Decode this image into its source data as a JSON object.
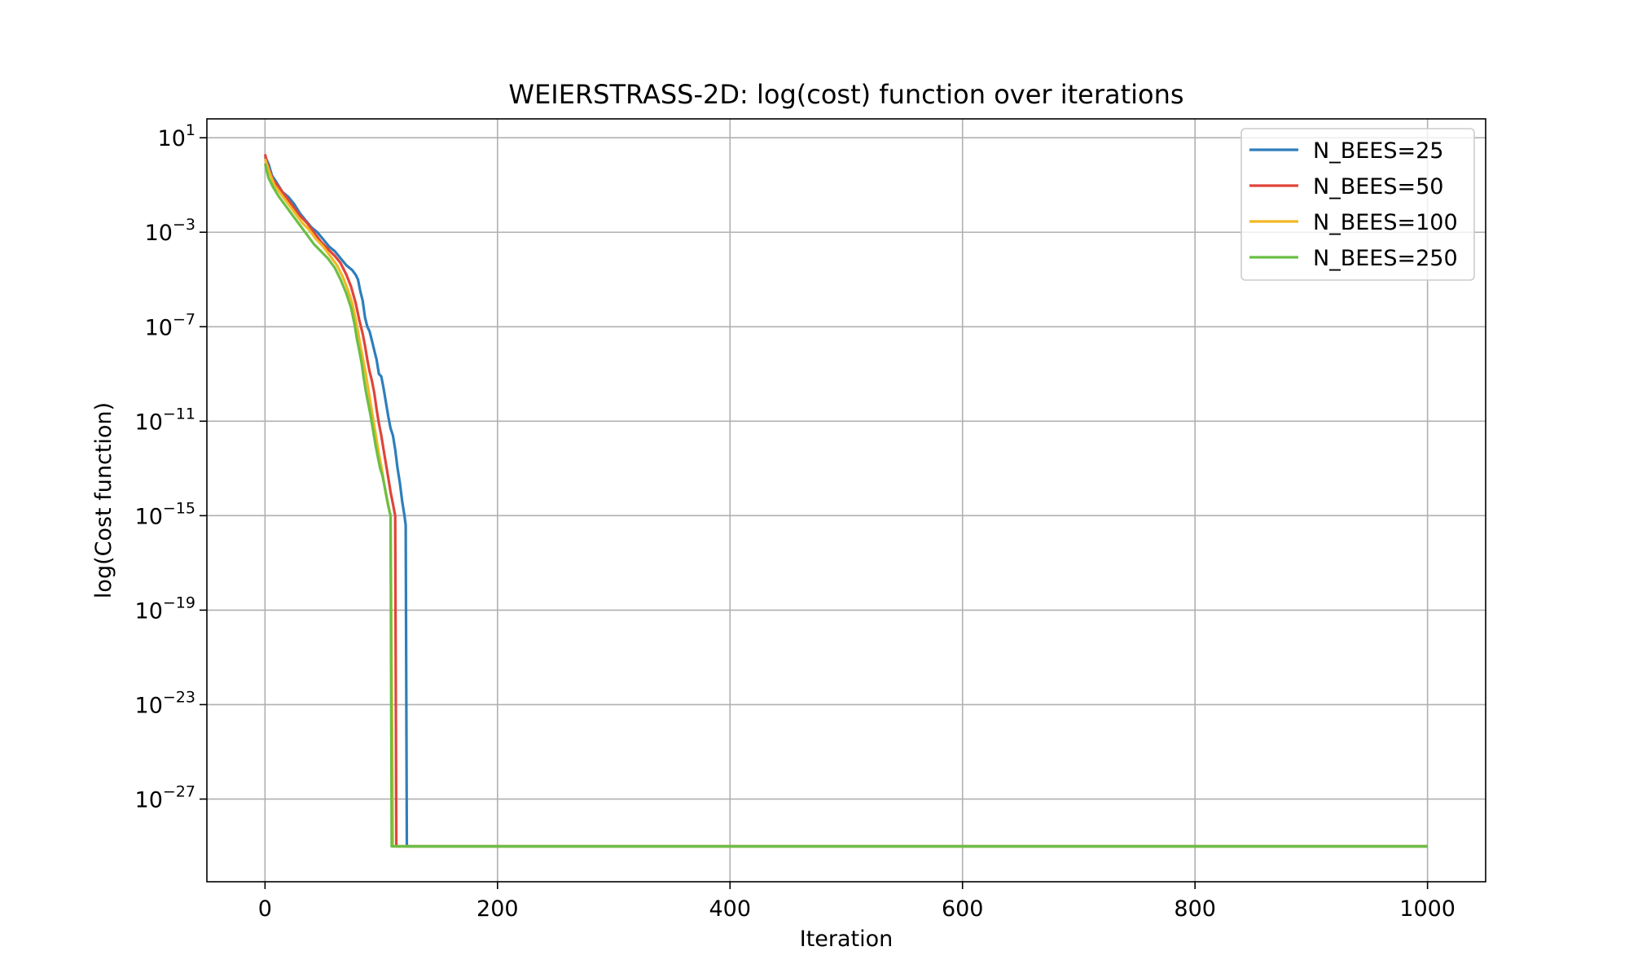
{
  "chart_data": {
    "type": "line",
    "title": "WEIERSTRASS-2D: log(cost) function over iterations",
    "xlabel": "Iteration",
    "ylabel": "log(Cost function)",
    "xlim": [
      -50,
      1050
    ],
    "ylim_log10": [
      -30.5,
      1.8
    ],
    "y_scale": "log",
    "grid": true,
    "legend_position": "top-right",
    "x_ticks": [
      0,
      200,
      400,
      600,
      800,
      1000
    ],
    "y_ticks": [
      {
        "base": "10",
        "exp": "1",
        "log10": 1
      },
      {
        "base": "10",
        "exp": "−3",
        "log10": -3
      },
      {
        "base": "10",
        "exp": "−7",
        "log10": -7
      },
      {
        "base": "10",
        "exp": "−11",
        "log10": -11
      },
      {
        "base": "10",
        "exp": "−15",
        "log10": -15
      },
      {
        "base": "10",
        "exp": "−19",
        "log10": -19
      },
      {
        "base": "10",
        "exp": "−23",
        "log10": -23
      },
      {
        "base": "10",
        "exp": "−27",
        "log10": -27
      }
    ],
    "series": [
      {
        "name": "N_BEES=25",
        "color": "#2e7ebc",
        "points": [
          [
            0,
            0.2
          ],
          [
            3,
            -0.1
          ],
          [
            6,
            -0.6
          ],
          [
            10,
            -0.9
          ],
          [
            15,
            -1.3
          ],
          [
            20,
            -1.5
          ],
          [
            25,
            -1.8
          ],
          [
            30,
            -2.2
          ],
          [
            35,
            -2.5
          ],
          [
            40,
            -2.8
          ],
          [
            45,
            -3.0
          ],
          [
            50,
            -3.3
          ],
          [
            55,
            -3.6
          ],
          [
            60,
            -3.8
          ],
          [
            65,
            -4.1
          ],
          [
            70,
            -4.4
          ],
          [
            75,
            -4.6
          ],
          [
            78,
            -4.8
          ],
          [
            80,
            -5.0
          ],
          [
            82,
            -5.5
          ],
          [
            84,
            -5.9
          ],
          [
            86,
            -6.6
          ],
          [
            88,
            -7.0
          ],
          [
            90,
            -7.2
          ],
          [
            92,
            -7.6
          ],
          [
            94,
            -8.0
          ],
          [
            96,
            -8.4
          ],
          [
            98,
            -9.0
          ],
          [
            100,
            -9.1
          ],
          [
            102,
            -9.6
          ],
          [
            104,
            -10.2
          ],
          [
            106,
            -10.8
          ],
          [
            108,
            -11.3
          ],
          [
            110,
            -11.6
          ],
          [
            112,
            -12.2
          ],
          [
            114,
            -13.0
          ],
          [
            116,
            -13.6
          ],
          [
            118,
            -14.4
          ],
          [
            120,
            -15.0
          ],
          [
            121,
            -15.4
          ],
          [
            122,
            -29.0
          ],
          [
            1000,
            -29.0
          ]
        ]
      },
      {
        "name": "N_BEES=50",
        "color": "#e0443b",
        "points": [
          [
            0,
            0.3
          ],
          [
            3,
            -0.3
          ],
          [
            7,
            -0.8
          ],
          [
            12,
            -1.1
          ],
          [
            18,
            -1.5
          ],
          [
            24,
            -1.9
          ],
          [
            30,
            -2.3
          ],
          [
            36,
            -2.6
          ],
          [
            42,
            -3.0
          ],
          [
            48,
            -3.4
          ],
          [
            54,
            -3.7
          ],
          [
            60,
            -4.0
          ],
          [
            65,
            -4.3
          ],
          [
            70,
            -4.8
          ],
          [
            74,
            -5.3
          ],
          [
            78,
            -6.0
          ],
          [
            81,
            -6.7
          ],
          [
            84,
            -7.3
          ],
          [
            86,
            -7.8
          ],
          [
            88,
            -8.4
          ],
          [
            90,
            -8.9
          ],
          [
            92,
            -9.3
          ],
          [
            94,
            -9.8
          ],
          [
            96,
            -10.5
          ],
          [
            98,
            -11.1
          ],
          [
            100,
            -11.6
          ],
          [
            102,
            -12.2
          ],
          [
            104,
            -12.8
          ],
          [
            106,
            -13.4
          ],
          [
            108,
            -14.0
          ],
          [
            110,
            -14.5
          ],
          [
            112,
            -15.0
          ],
          [
            113,
            -29.0
          ],
          [
            1000,
            -29.0
          ]
        ]
      },
      {
        "name": "N_BEES=100",
        "color": "#f2b824",
        "points": [
          [
            0,
            0.1
          ],
          [
            4,
            -0.5
          ],
          [
            8,
            -1.0
          ],
          [
            14,
            -1.4
          ],
          [
            20,
            -1.8
          ],
          [
            26,
            -2.2
          ],
          [
            32,
            -2.6
          ],
          [
            38,
            -2.9
          ],
          [
            44,
            -3.3
          ],
          [
            50,
            -3.6
          ],
          [
            56,
            -4.0
          ],
          [
            62,
            -4.4
          ],
          [
            67,
            -4.9
          ],
          [
            71,
            -5.4
          ],
          [
            75,
            -6.0
          ],
          [
            78,
            -6.7
          ],
          [
            80,
            -7.2
          ],
          [
            82,
            -7.8
          ],
          [
            84,
            -8.3
          ],
          [
            86,
            -8.8
          ],
          [
            88,
            -9.4
          ],
          [
            90,
            -10.0
          ],
          [
            92,
            -10.6
          ],
          [
            94,
            -11.2
          ],
          [
            96,
            -11.8
          ],
          [
            98,
            -12.4
          ],
          [
            100,
            -12.9
          ],
          [
            102,
            -13.5
          ],
          [
            104,
            -14.1
          ],
          [
            106,
            -14.6
          ],
          [
            108,
            -15.0
          ],
          [
            110,
            -29.0
          ],
          [
            1000,
            -29.0
          ]
        ]
      },
      {
        "name": "N_BEES=250",
        "color": "#6abf45",
        "points": [
          [
            0,
            -0.1
          ],
          [
            3,
            -0.7
          ],
          [
            7,
            -1.1
          ],
          [
            12,
            -1.5
          ],
          [
            18,
            -1.9
          ],
          [
            24,
            -2.3
          ],
          [
            30,
            -2.7
          ],
          [
            36,
            -3.1
          ],
          [
            42,
            -3.5
          ],
          [
            48,
            -3.8
          ],
          [
            54,
            -4.1
          ],
          [
            60,
            -4.5
          ],
          [
            65,
            -5.0
          ],
          [
            70,
            -5.6
          ],
          [
            74,
            -6.2
          ],
          [
            77,
            -6.9
          ],
          [
            79,
            -7.5
          ],
          [
            81,
            -8.0
          ],
          [
            83,
            -8.5
          ],
          [
            85,
            -9.2
          ],
          [
            87,
            -9.8
          ],
          [
            89,
            -10.3
          ],
          [
            91,
            -10.8
          ],
          [
            93,
            -11.4
          ],
          [
            95,
            -12.0
          ],
          [
            97,
            -12.5
          ],
          [
            99,
            -13.0
          ],
          [
            101,
            -13.3
          ],
          [
            103,
            -13.8
          ],
          [
            105,
            -14.3
          ],
          [
            107,
            -14.8
          ],
          [
            108,
            -15.0
          ],
          [
            109,
            -29.0
          ],
          [
            1000,
            -29.0
          ]
        ]
      }
    ]
  }
}
